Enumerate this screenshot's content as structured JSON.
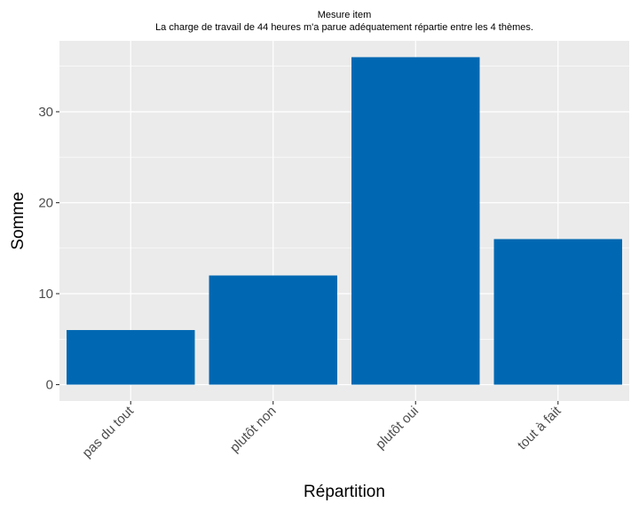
{
  "chart_data": {
    "type": "bar",
    "title": "Mesure item",
    "subtitle": "La charge de travail de 44 heures m'a parue adéquatement répartie entre les 4 thèmes.",
    "xlabel": "Répartition",
    "ylabel": "Somme",
    "categories": [
      "pas du tout",
      "plutôt non",
      "plutôt oui",
      "tout à fait"
    ],
    "values": [
      6,
      12,
      36,
      16
    ],
    "ylim": [
      -1.8,
      37.8
    ],
    "yticks": [
      0,
      10,
      20,
      30
    ],
    "grid": true,
    "legend": "none",
    "colors": {
      "bar": "#0068b2",
      "panel_background": "#ebebeb",
      "grid": "#ffffff"
    }
  }
}
